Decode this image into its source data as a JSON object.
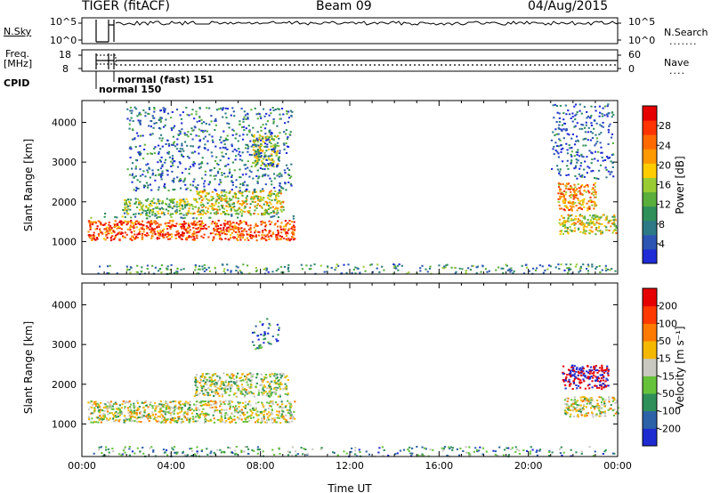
{
  "header": {
    "title_left": "TIGER (fitACF)",
    "title_center": "Beam 09",
    "title_right": "04/Aug/2015"
  },
  "strips": {
    "nsky_label": "N.Sky",
    "nsky_ticks": [
      "10^5",
      "10^0"
    ],
    "nsearch_label": "N.Search",
    "nsearch_ticks": [
      "10^5",
      "10^0"
    ],
    "freq_label": "Freq.",
    "freq_unit": "[MHz]",
    "freq_ticks": [
      "18",
      "8"
    ],
    "nave_label": "Nave",
    "nave_ticks": [
      "60",
      "0"
    ],
    "cpid_label": "CPID",
    "cpid_modes": [
      "normal (fast) 151",
      "normal 150"
    ]
  },
  "chart_data": [
    {
      "type": "heatmap",
      "panel": "power",
      "ylabel": "Slant Range [km]",
      "yticks": [
        1000,
        2000,
        3000,
        4000
      ],
      "ylim": [
        180,
        4550
      ],
      "xlim": [
        0,
        24
      ],
      "colorbar": {
        "label": "Power [dB]",
        "ticks": [
          4,
          8,
          12,
          16,
          20,
          24,
          28
        ],
        "range": [
          0,
          32
        ],
        "colors": [
          "#1f2bd6",
          "#2c55b3",
          "#2d7a86",
          "#2f8f5a",
          "#5aae3c",
          "#99cc33",
          "#ffcc00",
          "#ff9900",
          "#ff6a00",
          "#ff3300",
          "#e60000"
        ]
      },
      "regions": [
        {
          "t": [
            0.25,
            9.5
          ],
          "r": [
            1050,
            1550
          ],
          "level": 0.82
        },
        {
          "t": [
            0.25,
            9.5
          ],
          "r": [
            1600,
            1750
          ],
          "level": 0.35
        },
        {
          "t": [
            5.0,
            9.0
          ],
          "r": [
            1700,
            2300
          ],
          "level": 0.55
        },
        {
          "t": [
            1.8,
            5.0
          ],
          "r": [
            1700,
            2100
          ],
          "level": 0.45
        },
        {
          "t": [
            7.6,
            8.8
          ],
          "r": [
            2900,
            3700
          ],
          "level": 0.5
        },
        {
          "t": [
            2.0,
            9.4
          ],
          "r": [
            2300,
            4400
          ],
          "level": 0.2
        },
        {
          "t": [
            21.3,
            23.9
          ],
          "r": [
            1200,
            1700
          ],
          "level": 0.55
        },
        {
          "t": [
            21.3,
            23.0
          ],
          "r": [
            1800,
            2500
          ],
          "level": 0.7
        },
        {
          "t": [
            21.0,
            23.8
          ],
          "r": [
            2600,
            4500
          ],
          "level": 0.15
        },
        {
          "t": [
            0.5,
            23.9
          ],
          "r": [
            200,
            450
          ],
          "level": 0.3
        }
      ]
    },
    {
      "type": "heatmap",
      "panel": "velocity",
      "ylabel": "Slant Range [km]",
      "yticks": [
        1000,
        2000,
        3000,
        4000
      ],
      "ylim": [
        180,
        4550
      ],
      "xlim": [
        0,
        24
      ],
      "xticks": [
        "00:00",
        "04:00",
        "08:00",
        "12:00",
        "16:00",
        "20:00",
        "00:00"
      ],
      "xlabel": "Time UT",
      "colorbar": {
        "label": "Velocity [m s⁻¹]",
        "ticks": [
          200,
          100,
          50,
          15,
          -15,
          -50,
          -100,
          -200
        ],
        "colors": [
          "#1e2bd1",
          "#2c62a8",
          "#2f8f5a",
          "#66c23a",
          "#c8c8c0",
          "#f5b800",
          "#ff7a00",
          "#ff3a00",
          "#e60000"
        ]
      },
      "regions": [
        {
          "t": [
            0.25,
            9.5
          ],
          "r": [
            1050,
            1600
          ],
          "level": 0.5
        },
        {
          "t": [
            5.0,
            9.2
          ],
          "r": [
            1700,
            2300
          ],
          "level": 0.45
        },
        {
          "t": [
            7.6,
            8.8
          ],
          "r": [
            2900,
            3700
          ],
          "level": 0.2
        },
        {
          "t": [
            21.6,
            24.0
          ],
          "r": [
            1200,
            1700
          ],
          "level": 0.5
        },
        {
          "t": [
            21.5,
            23.6
          ],
          "r": [
            1900,
            2500
          ],
          "level": 0.85
        },
        {
          "t": [
            0.5,
            23.9
          ],
          "r": [
            200,
            450
          ],
          "level": 0.3
        }
      ]
    }
  ]
}
